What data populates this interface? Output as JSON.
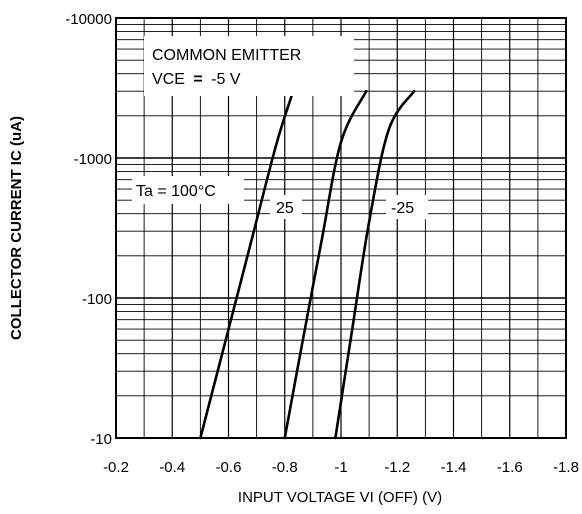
{
  "chart_data": {
    "type": "line",
    "title": "",
    "xlabel": "INPUT VOLTAGE   VI (OFF) (V)",
    "ylabel": "COLLECTOR CURRENT  IC (uA)",
    "x_scale": "linear",
    "y_scale": "log",
    "xlim": [
      -0.2,
      -1.8
    ],
    "ylim": [
      -10,
      -10000
    ],
    "x_ticks": [
      -0.2,
      -0.4,
      -0.6,
      -0.8,
      -1,
      -1.2,
      -1.4,
      -1.6,
      -1.8
    ],
    "x_tick_labels": [
      "-0.2",
      "-0.4",
      "-0.6",
      "-0.8",
      "-1",
      "-1.2",
      "-1.4",
      "-1.6",
      "-1.8"
    ],
    "y_ticks": [
      -10,
      -100,
      -1000,
      -10000
    ],
    "y_tick_labels": [
      "-10",
      "-100",
      "-1000",
      "-10000"
    ],
    "grid": true,
    "annotations": {
      "box_line1": "COMMON EMITTER",
      "box_line2_prefix": "VCE",
      "box_line2_eq": "=",
      "box_line2_value": "-5 V",
      "ta_label": "Ta = 100°C",
      "label_25": "25",
      "label_m25": "-25"
    },
    "series": [
      {
        "name": "Ta = 100°C",
        "x": [
          -0.5,
          -0.59,
          -0.68,
          -0.77,
          -0.83
        ],
        "y": [
          -10,
          -50,
          -250,
          -1250,
          -3000
        ]
      },
      {
        "name": "25",
        "x": [
          -0.8,
          -0.86,
          -0.93,
          -1.0,
          -1.09
        ],
        "y": [
          -10,
          -45,
          -250,
          -1300,
          -3000
        ]
      },
      {
        "name": "-25",
        "x": [
          -0.98,
          -1.04,
          -1.1,
          -1.17,
          -1.26
        ],
        "y": [
          -10,
          -60,
          -350,
          -1600,
          -3000
        ]
      }
    ]
  }
}
